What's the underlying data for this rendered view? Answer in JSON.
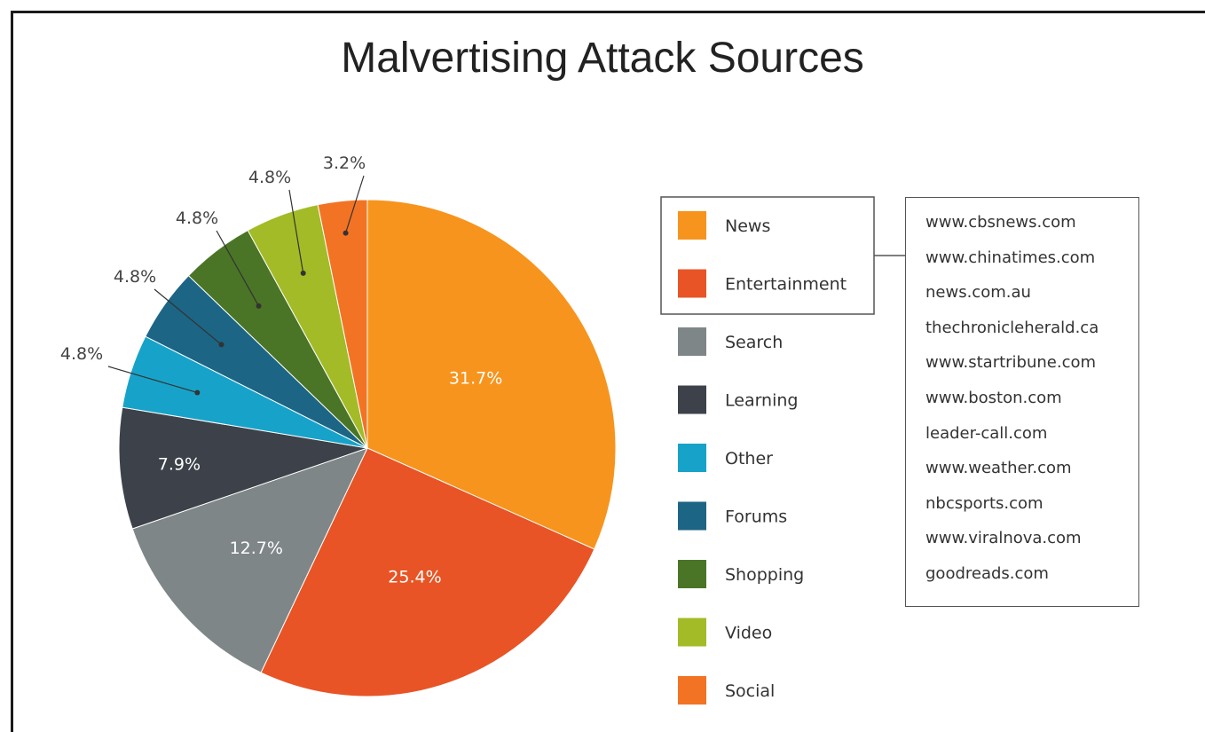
{
  "chart_data": {
    "type": "pie",
    "title": "Malvertising Attack Sources",
    "slices": [
      {
        "label": "News",
        "value": 31.7,
        "display": "31.7%",
        "color": "#f7941d"
      },
      {
        "label": "Entertainment",
        "value": 25.4,
        "display": "25.4%",
        "color": "#e85425"
      },
      {
        "label": "Search",
        "value": 12.7,
        "display": "12.7%",
        "color": "#7f8688"
      },
      {
        "label": "Learning",
        "value": 7.9,
        "display": "7.9%",
        "color": "#3d424a"
      },
      {
        "label": "Other",
        "value": 4.8,
        "display": "4.8%",
        "color": "#17a3c9"
      },
      {
        "label": "Forums",
        "value": 4.8,
        "display": "4.8%",
        "color": "#1c6585"
      },
      {
        "label": "Shopping",
        "value": 4.8,
        "display": "4.8%",
        "color": "#4a7526"
      },
      {
        "label": "Video",
        "value": 4.8,
        "display": "4.8%",
        "color": "#a3bb26"
      },
      {
        "label": "Social",
        "value": 3.2,
        "display": "3.2%",
        "color": "#f37324"
      }
    ],
    "legend_placement": "right",
    "highlighted_legend_items": [
      "News",
      "Entertainment"
    ],
    "sample_domains": [
      "www.cbsnews.com",
      "www.chinatimes.com",
      "news.com.au",
      "thechronicleherald.ca",
      "www.startribune.com",
      "www.boston.com",
      "leader-call.com",
      "www.weather.com",
      "nbcsports.com",
      "www.viralnova.com",
      "goodreads.com"
    ]
  }
}
